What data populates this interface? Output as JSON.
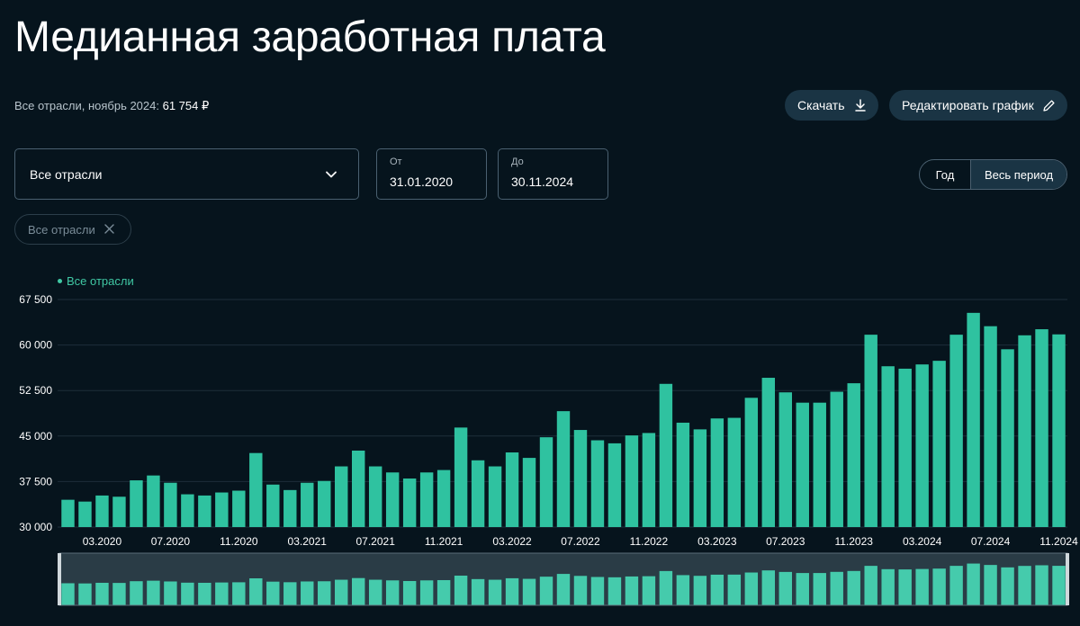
{
  "page": {
    "title": "Медианная заработная плата",
    "subtitle_label": "Все отрасли, ноябрь 2024:",
    "subtitle_value": "61 754 ₽"
  },
  "toolbar": {
    "download_label": "Скачать",
    "download_icon": "download-icon",
    "edit_label": "Редактировать график",
    "edit_icon": "pencil-icon"
  },
  "filters": {
    "industry_value": "Все отрасли",
    "from_label": "От",
    "from_value": "31.01.2020",
    "to_label": "До",
    "to_value": "30.11.2024",
    "period_options": [
      "Год",
      "Весь период"
    ],
    "period_selected": "Весь период",
    "chip_label": "Все отрасли"
  },
  "colors": {
    "background": "#06141d",
    "bar": "#2fc2a0",
    "nav_bar": "#45cbac",
    "button": "#1a3444",
    "legend": "#40c8a4"
  },
  "chart_data": {
    "type": "bar",
    "legend": "Все отрасли",
    "y_ticks": [
      "30 000",
      "37 500",
      "45 000",
      "52 500",
      "60 000",
      "67 500"
    ],
    "ylim": [
      30000,
      67500
    ],
    "x_tick_labels": [
      "03.2020",
      "07.2020",
      "11.2020",
      "03.2021",
      "07.2021",
      "11.2021",
      "03.2022",
      "07.2022",
      "11.2022",
      "03.2023",
      "07.2023",
      "11.2023",
      "03.2024",
      "07.2024",
      "11.2024"
    ],
    "categories": [
      "01.2020",
      "02.2020",
      "03.2020",
      "04.2020",
      "05.2020",
      "06.2020",
      "07.2020",
      "08.2020",
      "09.2020",
      "10.2020",
      "11.2020",
      "12.2020",
      "01.2021",
      "02.2021",
      "03.2021",
      "04.2021",
      "05.2021",
      "06.2021",
      "07.2021",
      "08.2021",
      "09.2021",
      "10.2021",
      "11.2021",
      "12.2021",
      "01.2022",
      "02.2022",
      "03.2022",
      "04.2022",
      "05.2022",
      "06.2022",
      "07.2022",
      "08.2022",
      "09.2022",
      "10.2022",
      "11.2022",
      "12.2022",
      "01.2023",
      "02.2023",
      "03.2023",
      "04.2023",
      "05.2023",
      "06.2023",
      "07.2023",
      "08.2023",
      "09.2023",
      "10.2023",
      "11.2023",
      "12.2023",
      "01.2024",
      "02.2024",
      "03.2024",
      "04.2024",
      "05.2024",
      "06.2024",
      "07.2024",
      "08.2024",
      "09.2024",
      "10.2024",
      "11.2024"
    ],
    "values": [
      34500,
      34200,
      35200,
      35000,
      37700,
      38500,
      37300,
      35400,
      35200,
      35700,
      36000,
      42200,
      37000,
      36100,
      37300,
      37600,
      40000,
      42600,
      40000,
      39000,
      38000,
      39000,
      39400,
      46400,
      41000,
      40000,
      42300,
      41400,
      44800,
      49100,
      46000,
      44300,
      43800,
      45100,
      45500,
      53600,
      47200,
      46100,
      47900,
      48000,
      51300,
      54600,
      52200,
      50500,
      50500,
      52300,
      53700,
      61700,
      56500,
      56100,
      56800,
      57400,
      61700,
      65300,
      63100,
      59300,
      61600,
      62600,
      61754
    ]
  }
}
